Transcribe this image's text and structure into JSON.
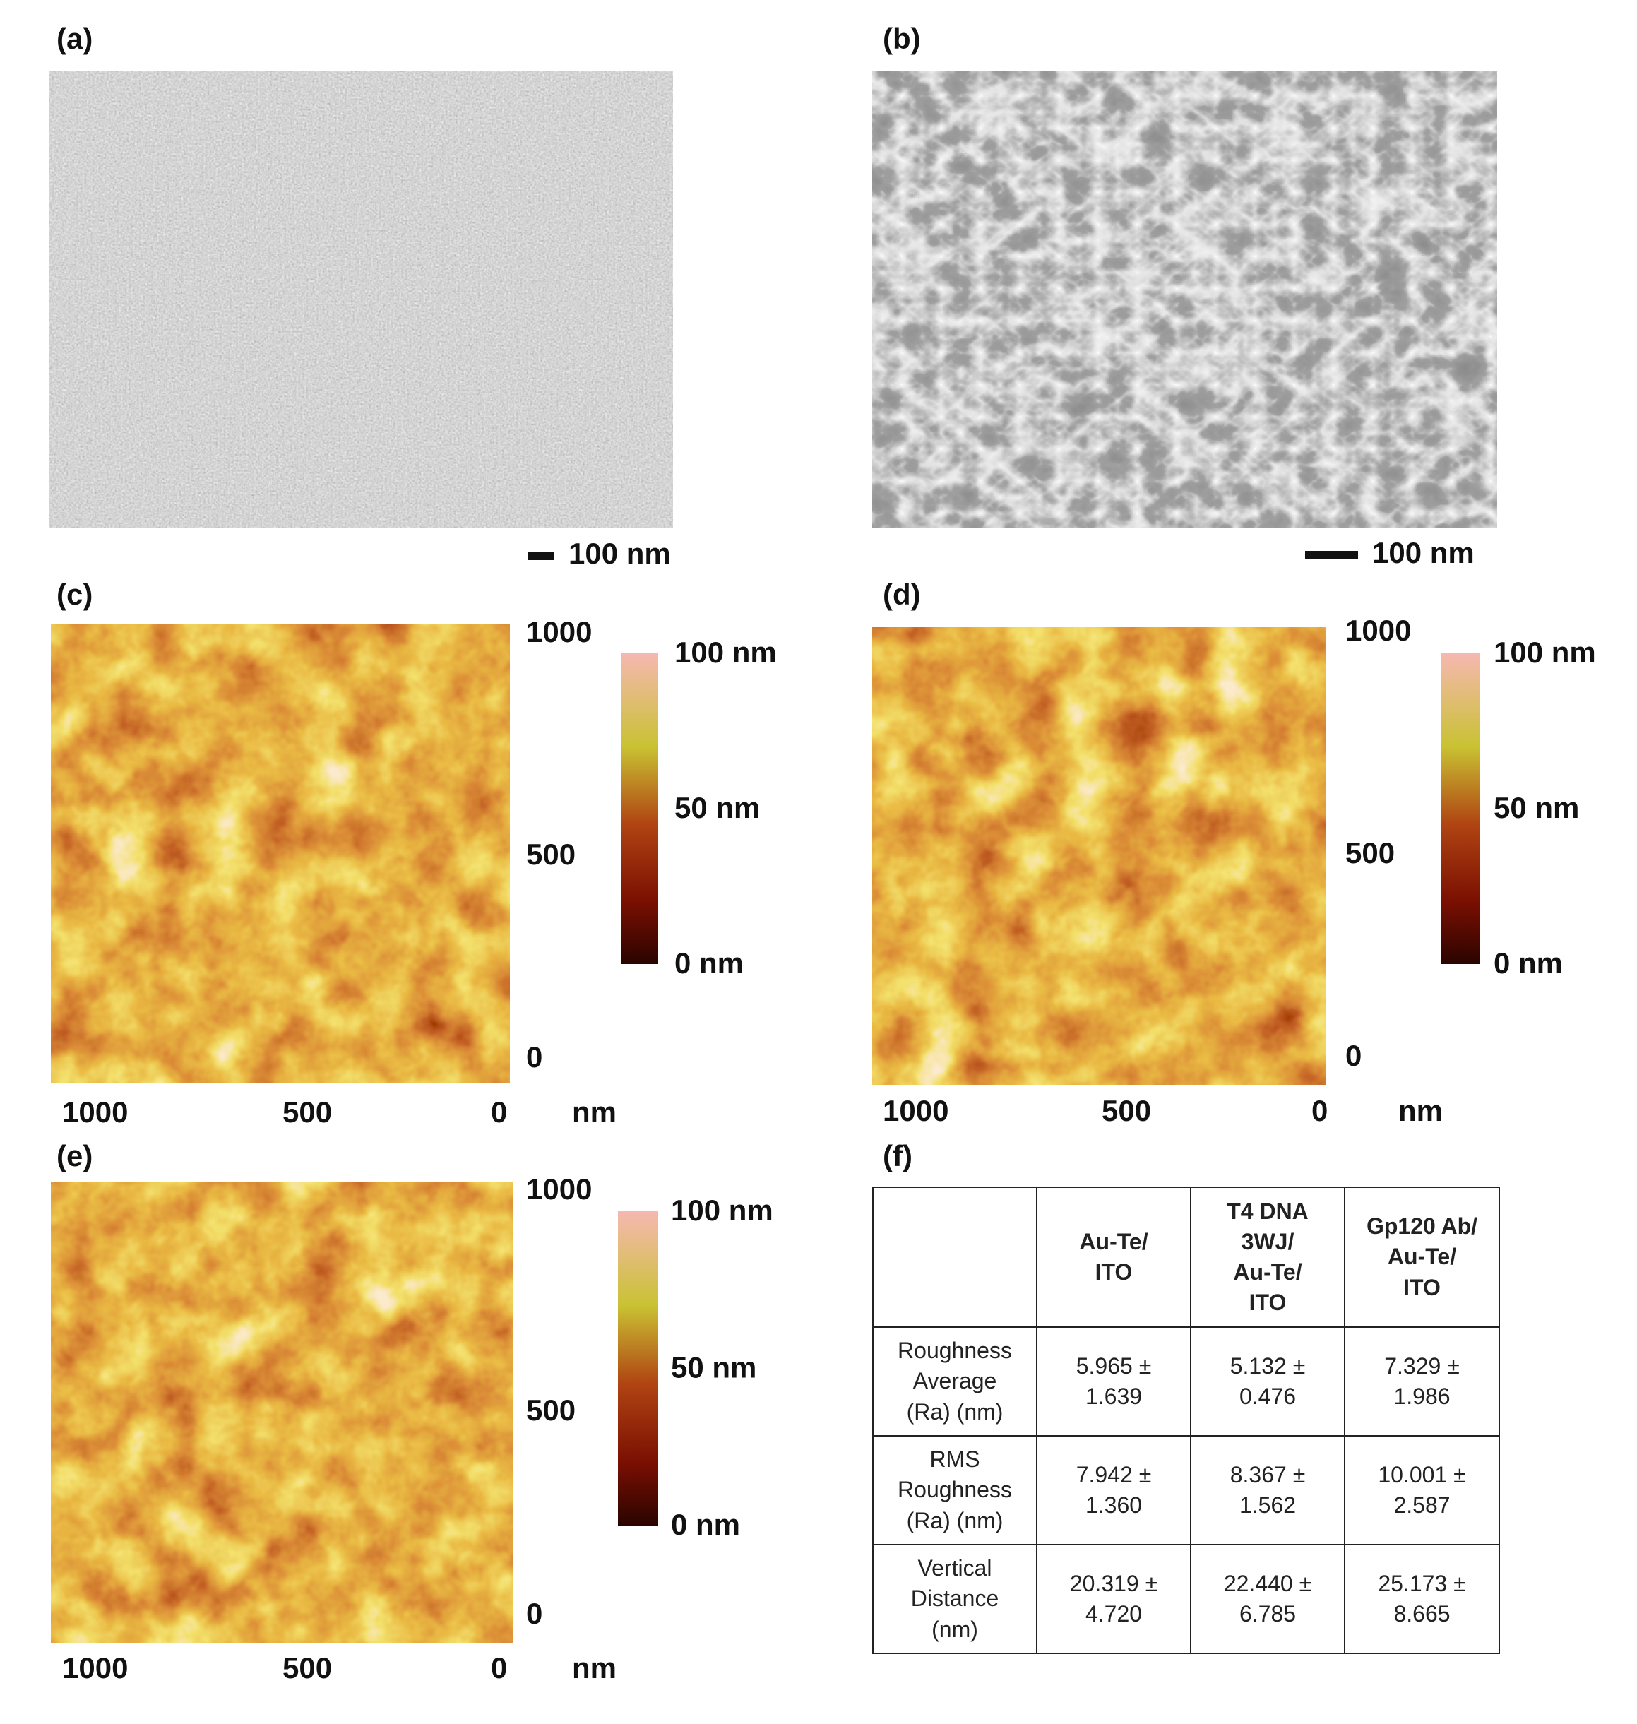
{
  "panels": [
    {
      "label": "(a)",
      "scale_bar": "100 nm"
    },
    {
      "label": "(b)",
      "scale_bar": "100 nm"
    },
    {
      "label": "(c)",
      "y_ticks": [
        "1000",
        "500",
        "0"
      ],
      "x_ticks": [
        "1000",
        "500",
        "0"
      ],
      "x_unit": "nm",
      "colorbar": [
        "100 nm",
        "50 nm",
        "0 nm"
      ]
    },
    {
      "label": "(d)",
      "y_ticks": [
        "1000",
        "500",
        "0"
      ],
      "x_ticks": [
        "1000",
        "500",
        "0"
      ],
      "x_unit": "nm",
      "colorbar": [
        "100 nm",
        "50 nm",
        "0 nm"
      ]
    },
    {
      "label": "(e)",
      "y_ticks": [
        "1000",
        "500",
        "0"
      ],
      "x_ticks": [
        "1000",
        "500",
        "0"
      ],
      "x_unit": "nm",
      "colorbar": [
        "100 nm",
        "50 nm",
        "0 nm"
      ]
    },
    {
      "label": "(f)"
    }
  ],
  "table": {
    "columns": [
      [
        "Au-Te/",
        "ITO"
      ],
      [
        "T4 DNA",
        "3WJ/",
        "Au-Te/",
        "ITO"
      ],
      [
        "Gp120 Ab/",
        "Au-Te/",
        "ITO"
      ]
    ],
    "rows": [
      {
        "label": [
          "Roughness",
          "Average",
          "(Ra) (nm)"
        ],
        "cells": [
          "5.965 ± 1.639",
          "5.132 ± 0.476",
          "7.329 ± 1.986"
        ]
      },
      {
        "label": [
          "RMS",
          "Roughness",
          "(Ra) (nm)"
        ],
        "cells": [
          "7.942 ± 1.360",
          "8.367 ± 1.562",
          "10.001 ± 2.587"
        ]
      },
      {
        "label": [
          "Vertical",
          "Distance",
          "(nm)"
        ],
        "cells": [
          "20.319 ± 4.720",
          "22.440 ± 6.785",
          "25.173 ± 8.665"
        ]
      }
    ]
  }
}
